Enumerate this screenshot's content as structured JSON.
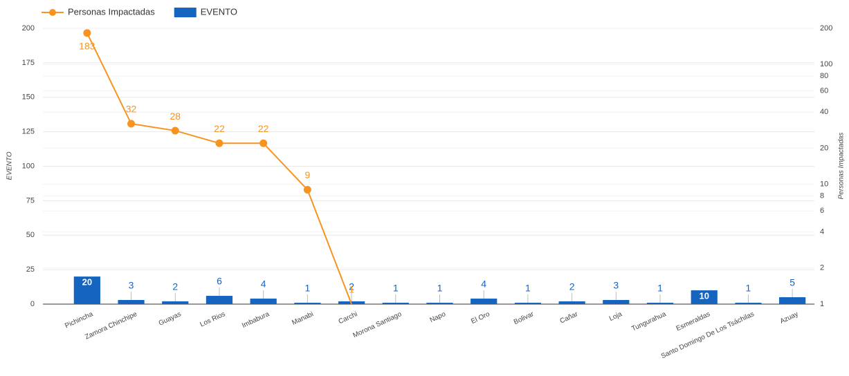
{
  "chart_data": {
    "type": "combo",
    "categories": [
      "Pichincha",
      "Zamora Chinchipe",
      "Guayas",
      "Los Rios",
      "Imbabura",
      "Manabi",
      "Carchi",
      "Morona Santiago",
      "Napo",
      "El Oro",
      "Bolivar",
      "Cañar",
      "Loja",
      "Tungurahua",
      "Esmeraldas",
      "Santo Domingo De Los Tsáchilas",
      "Azuay"
    ],
    "series": [
      {
        "name": "Personas Impactadas",
        "type": "line",
        "axis": "y2",
        "color": "#f7931e",
        "values": [
          183,
          32,
          28,
          22,
          22,
          9,
          1,
          null,
          null,
          null,
          null,
          null,
          null,
          null,
          null,
          null,
          null
        ]
      },
      {
        "name": "EVENTO",
        "type": "bar",
        "color": "#1565c0",
        "values": [
          20,
          3,
          2,
          6,
          4,
          1,
          2,
          1,
          1,
          4,
          1,
          2,
          3,
          1,
          10,
          1,
          5
        ]
      }
    ],
    "ylabel": "EVENTO",
    "y2label": "Personas Impactadas",
    "ylim": [
      0,
      200
    ],
    "yticks": [
      0,
      25,
      50,
      75,
      100,
      125,
      150,
      175,
      200
    ],
    "y2lim": [
      1,
      200
    ],
    "y2scale": "log",
    "y2ticks": [
      1,
      2,
      4,
      6,
      8,
      10,
      20,
      40,
      60,
      80,
      100,
      200
    ],
    "grid": true,
    "legend": "top-left"
  }
}
